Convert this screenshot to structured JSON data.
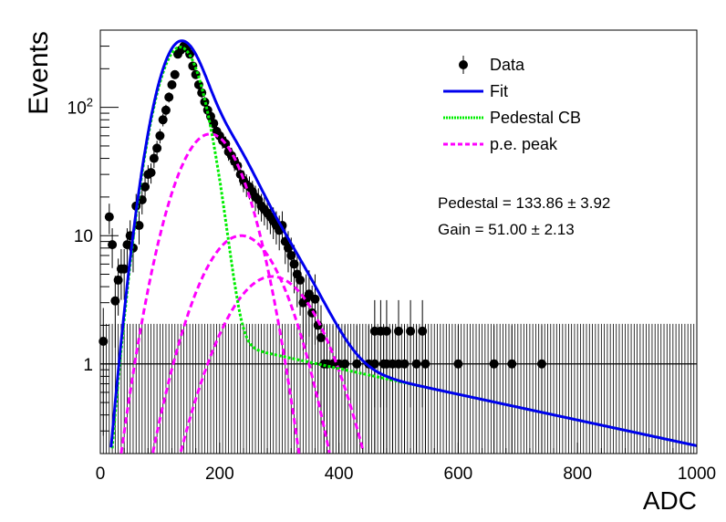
{
  "chart_data": {
    "type": "scatter",
    "xlabel": "ADC",
    "ylabel": "Events",
    "xlim": [
      0,
      1000
    ],
    "ylim": [
      0.2,
      400
    ],
    "yscale": "log",
    "x_ticks": [
      0,
      200,
      400,
      600,
      800,
      1000
    ],
    "y_ticks": [
      {
        "value": 1,
        "label": "1"
      },
      {
        "value": 10,
        "label": "10"
      },
      {
        "value": 100,
        "label": "10",
        "sup": "2"
      }
    ],
    "legend": {
      "placement": "top-right",
      "entries": [
        {
          "label": "Data",
          "style": "marker",
          "color": "#000000"
        },
        {
          "label": "Fit",
          "style": "solid",
          "color": "#0000ee"
        },
        {
          "label": "Pedestal CB",
          "style": "dotted",
          "color": "#00ee00"
        },
        {
          "label": "p.e. peak",
          "style": "dashed",
          "color": "#ff00ff"
        }
      ]
    },
    "annotations": [
      "Pedestal = 133.86 ± 3.92",
      "Gain = 51.00 ± 2.13"
    ],
    "data_points": [
      [
        5,
        1.5
      ],
      [
        15,
        14
      ],
      [
        20,
        8.5
      ],
      [
        25,
        3.1
      ],
      [
        30,
        4.5
      ],
      [
        35,
        5.5
      ],
      [
        40,
        5.5
      ],
      [
        45,
        8.5
      ],
      [
        50,
        10
      ],
      [
        55,
        8
      ],
      [
        60,
        17
      ],
      [
        65,
        12
      ],
      [
        70,
        19
      ],
      [
        75,
        24
      ],
      [
        80,
        30
      ],
      [
        85,
        31
      ],
      [
        90,
        40
      ],
      [
        95,
        48
      ],
      [
        100,
        60
      ],
      [
        105,
        80
      ],
      [
        110,
        95
      ],
      [
        115,
        120
      ],
      [
        120,
        150
      ],
      [
        125,
        180
      ],
      [
        130,
        260
      ],
      [
        135,
        280
      ],
      [
        140,
        300
      ],
      [
        145,
        290
      ],
      [
        150,
        260
      ],
      [
        155,
        210
      ],
      [
        160,
        180
      ],
      [
        165,
        150
      ],
      [
        170,
        130
      ],
      [
        175,
        110
      ],
      [
        180,
        95
      ],
      [
        185,
        85
      ],
      [
        190,
        75
      ],
      [
        195,
        65
      ],
      [
        200,
        60
      ],
      [
        205,
        55
      ],
      [
        210,
        52
      ],
      [
        215,
        45
      ],
      [
        220,
        42
      ],
      [
        225,
        38
      ],
      [
        230,
        35
      ],
      [
        235,
        30
      ],
      [
        240,
        27
      ],
      [
        245,
        25
      ],
      [
        250,
        24
      ],
      [
        255,
        22
      ],
      [
        260,
        20
      ],
      [
        265,
        19
      ],
      [
        270,
        17
      ],
      [
        275,
        16
      ],
      [
        280,
        15
      ],
      [
        285,
        14
      ],
      [
        290,
        13
      ],
      [
        295,
        12
      ],
      [
        300,
        11
      ],
      [
        305,
        12
      ],
      [
        310,
        9
      ],
      [
        315,
        8
      ],
      [
        320,
        7
      ],
      [
        325,
        6
      ],
      [
        330,
        5
      ],
      [
        335,
        4.5
      ],
      [
        340,
        3
      ],
      [
        345,
        3.2
      ],
      [
        350,
        3.5
      ],
      [
        355,
        2.5
      ],
      [
        360,
        3.2
      ],
      [
        365,
        2
      ],
      [
        370,
        1.6
      ],
      [
        375,
        1
      ],
      [
        380,
        1
      ],
      [
        390,
        1
      ],
      [
        400,
        1
      ],
      [
        410,
        1
      ],
      [
        430,
        1
      ],
      [
        450,
        1
      ],
      [
        460,
        1
      ],
      [
        475,
        1
      ],
      [
        480,
        1
      ],
      [
        490,
        1
      ],
      [
        500,
        1
      ],
      [
        510,
        1
      ],
      [
        530,
        1
      ],
      [
        545,
        1
      ],
      [
        600,
        1
      ],
      [
        660,
        1
      ],
      [
        690,
        1
      ],
      [
        740,
        1
      ],
      [
        460,
        1.8
      ],
      [
        470,
        1.8
      ],
      [
        480,
        1.8
      ],
      [
        500,
        1.8
      ],
      [
        520,
        1.8
      ],
      [
        540,
        1.8
      ]
    ],
    "fit": {
      "pedestal_mean": 133.86,
      "pedestal_sigma": 30,
      "pedestal_amplitude": 295,
      "gain": 51.0,
      "pe_peak_1": {
        "mean": 184,
        "sigma": 44,
        "amplitude": 62
      },
      "pe_peak_2": {
        "mean": 236,
        "sigma": 53,
        "amplitude": 10
      },
      "pe_peak_3": {
        "mean": 288,
        "sigma": 61,
        "amplitude": 4.8
      },
      "tail": {
        "value_at_400": 0.92,
        "value_at_1000": 0.23
      }
    }
  }
}
